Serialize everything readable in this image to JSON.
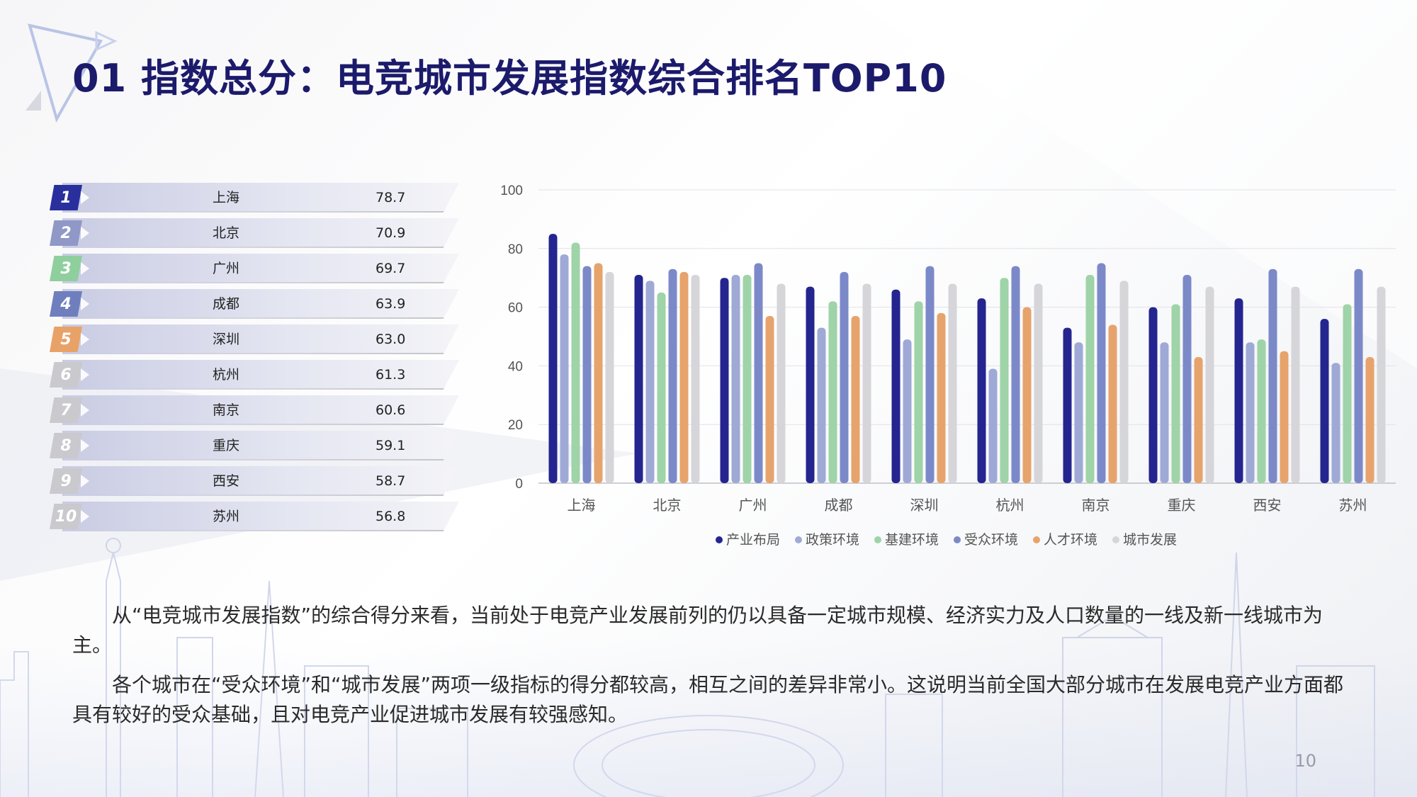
{
  "title": "01 指数总分：电竞城市发展指数综合排名TOP10",
  "ranking": [
    {
      "rank": "1",
      "city": "上海",
      "score": "78.7",
      "color": "#2a2f9e"
    },
    {
      "rank": "2",
      "city": "北京",
      "score": "70.9",
      "color": "#8f98c6"
    },
    {
      "rank": "3",
      "city": "广州",
      "score": "69.7",
      "color": "#8fcf9e"
    },
    {
      "rank": "4",
      "city": "成都",
      "score": "63.9",
      "color": "#6f7fbe"
    },
    {
      "rank": "5",
      "city": "深圳",
      "score": "63.0",
      "color": "#e8a268"
    },
    {
      "rank": "6",
      "city": "杭州",
      "score": "61.3",
      "color": "#c9c9ce"
    },
    {
      "rank": "7",
      "city": "南京",
      "score": "60.6",
      "color": "#c9c9ce"
    },
    {
      "rank": "8",
      "city": "重庆",
      "score": "59.1",
      "color": "#c9c9ce"
    },
    {
      "rank": "9",
      "city": "西安",
      "score": "58.7",
      "color": "#c9c9ce"
    },
    {
      "rank": "10",
      "city": "苏州",
      "score": "56.8",
      "color": "#c9c9ce"
    }
  ],
  "chart_data": {
    "type": "bar",
    "categories": [
      "上海",
      "北京",
      "广州",
      "成都",
      "深圳",
      "杭州",
      "南京",
      "重庆",
      "西安",
      "苏州"
    ],
    "series": [
      {
        "name": "产业布局",
        "color": "#24258f",
        "values": [
          85,
          71,
          70,
          67,
          66,
          63,
          53,
          60,
          63,
          56
        ]
      },
      {
        "name": "政策环境",
        "color": "#9fa9d6",
        "values": [
          78,
          69,
          71,
          53,
          49,
          39,
          48,
          48,
          48,
          41
        ]
      },
      {
        "name": "基建环境",
        "color": "#9fd3a8",
        "values": [
          82,
          65,
          71,
          62,
          62,
          70,
          71,
          61,
          49,
          61
        ]
      },
      {
        "name": "受众环境",
        "color": "#7c89c8",
        "values": [
          74,
          73,
          75,
          72,
          74,
          74,
          75,
          71,
          73,
          73
        ]
      },
      {
        "name": "人才环境",
        "color": "#e7a36c",
        "values": [
          75,
          72,
          57,
          57,
          58,
          60,
          54,
          43,
          45,
          43
        ]
      },
      {
        "name": "城市发展",
        "color": "#d6d6da",
        "values": [
          72,
          71,
          68,
          68,
          68,
          68,
          69,
          67,
          67,
          67
        ]
      }
    ],
    "yticks": [
      "0",
      "20",
      "40",
      "60",
      "80",
      "100"
    ],
    "ylim": [
      0,
      100
    ],
    "grid": true,
    "legend": "bottom"
  },
  "paragraphs": [
    "从“电竞城市发展指数”的综合得分来看，当前处于电竞产业发展前列的仍以具备一定城市规模、经济实力及人口数量的一线及新一线城市为主。",
    "各个城市在“受众环境”和“城市发展”两项一级指标的得分都较高，相互之间的差异非常小。这说明当前全国大部分城市在发展电竞产业方面都具有较好的受众基础，且对电竞产业促进城市发展有较强感知。"
  ],
  "page_number": "10"
}
